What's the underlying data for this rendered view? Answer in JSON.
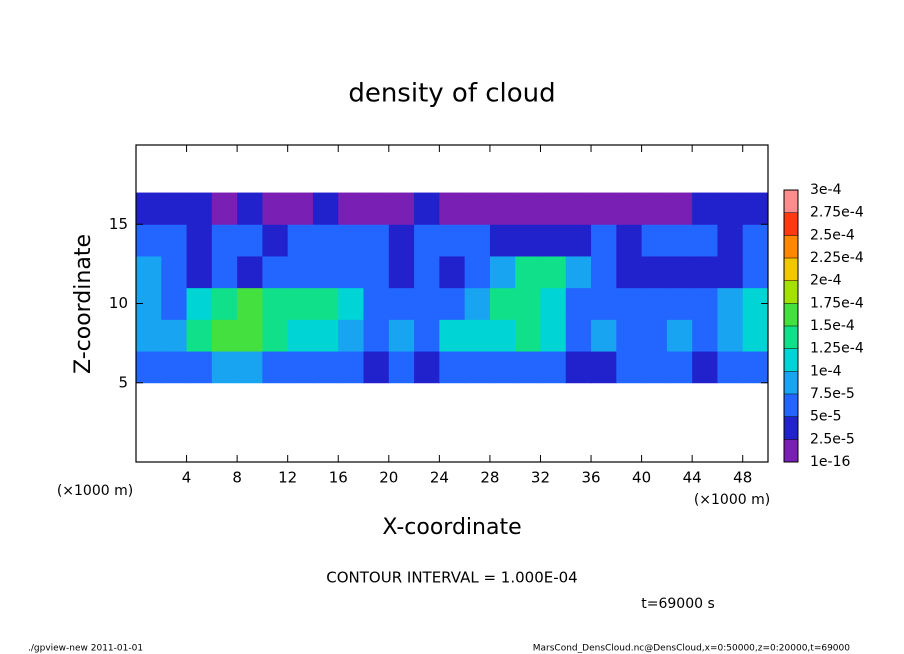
{
  "chart_data": {
    "type": "heatmap",
    "title": "density of cloud",
    "xlabel": "X-coordinate",
    "ylabel": "Z-coordinate",
    "x_unit": "(×1000 m)",
    "y_unit": "(×1000 m)",
    "note": "CONTOUR INTERVAL = 1.000E-04",
    "time": "t=69000 s",
    "footer_left": "./gpview-new  2011-01-01",
    "footer_right": "MarsCond_DensCloud.nc@DensCloud,x=0:50000,z=0:20000,t=69000",
    "xlim": [
      0,
      50
    ],
    "ylim": [
      0,
      20
    ],
    "xticks": [
      4,
      8,
      12,
      16,
      20,
      24,
      28,
      32,
      36,
      40,
      44,
      48
    ],
    "yticks": [
      5,
      10,
      15
    ],
    "x": [
      1,
      3,
      5,
      7,
      9,
      11,
      13,
      15,
      17,
      19,
      21,
      23,
      25,
      27,
      29,
      31,
      33,
      35,
      37,
      39,
      41,
      43,
      45,
      47,
      49
    ],
    "z": [
      6,
      8,
      10,
      12,
      14,
      16
    ],
    "field": [
      [
        5e-05,
        6e-05,
        7e-05,
        8e-05,
        8e-05,
        7e-05,
        6e-05,
        5e-05,
        5e-05,
        4e-05,
        5e-05,
        4e-05,
        5e-05,
        6e-05,
        6e-05,
        7e-05,
        5e-05,
        4e-05,
        4e-05,
        5e-05,
        6e-05,
        5e-05,
        4e-05,
        5e-05,
        6e-05
      ],
      [
        8e-05,
        9e-05,
        0.00013,
        0.00015,
        0.00015,
        0.00014,
        0.00012,
        0.00011,
        8e-05,
        7e-05,
        8e-05,
        7e-05,
        0.00011,
        0.00012,
        0.00011,
        0.00013,
        0.00012,
        7e-05,
        8e-05,
        6e-05,
        7e-05,
        9e-05,
        7e-05,
        9e-05,
        0.00011
      ],
      [
        9e-05,
        7e-05,
        0.00012,
        0.00014,
        0.00015,
        0.00014,
        0.00014,
        0.00013,
        0.00011,
        7e-05,
        6e-05,
        5e-05,
        6e-05,
        8e-05,
        0.00013,
        0.00014,
        0.00012,
        6e-05,
        5e-05,
        6e-05,
        5e-05,
        6e-05,
        7e-05,
        8e-05,
        0.00012
      ],
      [
        8e-05,
        6e-05,
        4e-05,
        5e-05,
        4e-05,
        5e-05,
        6e-05,
        7e-05,
        5e-05,
        6e-05,
        4e-05,
        5e-05,
        4e-05,
        5e-05,
        8e-05,
        0.00013,
        0.00014,
        9e-05,
        5e-05,
        3e-05,
        4e-05,
        3e-05,
        4e-05,
        3e-05,
        7e-05
      ],
      [
        6e-05,
        5e-05,
        4e-05,
        6e-05,
        5e-05,
        4e-05,
        5e-05,
        5e-05,
        6e-05,
        5e-05,
        4e-05,
        5e-05,
        6e-05,
        5e-05,
        4e-05,
        3e-05,
        3e-05,
        4e-05,
        5e-05,
        4e-05,
        5e-05,
        6e-05,
        5e-05,
        4e-05,
        6e-05
      ],
      [
        3e-05,
        4e-05,
        3e-05,
        2e-05,
        3e-05,
        2e-05,
        2e-05,
        3e-05,
        2e-05,
        2e-05,
        2e-05,
        3e-05,
        2e-05,
        2e-05,
        2e-05,
        2e-05,
        2e-05,
        2e-05,
        2e-05,
        2e-05,
        2e-05,
        2e-05,
        3e-05,
        3e-05,
        4e-05
      ]
    ],
    "levels": [
      {
        "value": 1e-16,
        "label": "1e-16"
      },
      {
        "value": 2.5e-05,
        "label": "2.5e-5"
      },
      {
        "value": 5e-05,
        "label": "5e-5"
      },
      {
        "value": 7.5e-05,
        "label": "7.5e-5"
      },
      {
        "value": 0.0001,
        "label": "1e-4"
      },
      {
        "value": 0.000125,
        "label": "1.25e-4"
      },
      {
        "value": 0.00015,
        "label": "1.5e-4"
      },
      {
        "value": 0.000175,
        "label": "1.75e-4"
      },
      {
        "value": 0.0002,
        "label": "2e-4"
      },
      {
        "value": 0.000225,
        "label": "2.25e-4"
      },
      {
        "value": 0.00025,
        "label": "2.5e-4"
      },
      {
        "value": 0.000275,
        "label": "2.75e-4"
      },
      {
        "value": 0.0003,
        "label": "3e-4"
      }
    ],
    "colors": [
      "#7a1fb4",
      "#2222cc",
      "#2266ff",
      "#18a4f0",
      "#00d4d4",
      "#10e08a",
      "#44e040",
      "#a4e000",
      "#f0c800",
      "#ff8800",
      "#ff3a10",
      "#ff8c8c"
    ]
  }
}
